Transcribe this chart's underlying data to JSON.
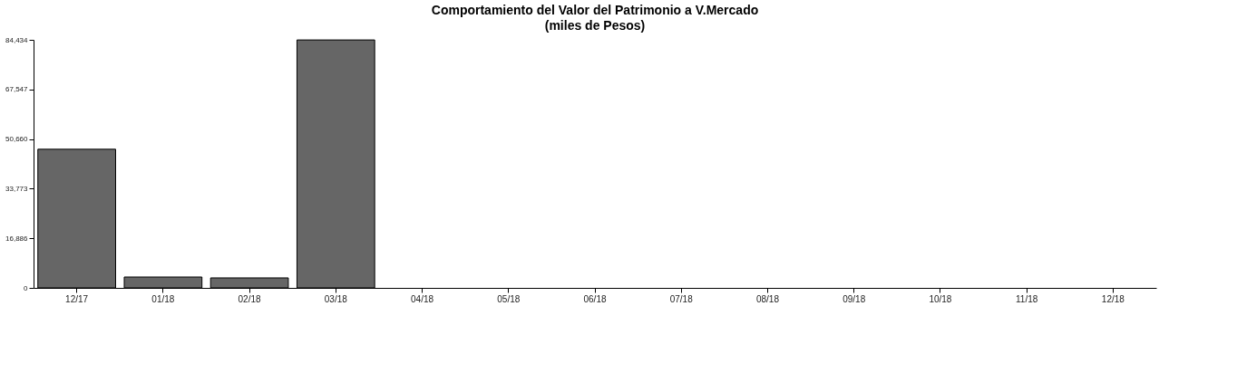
{
  "chart_data": {
    "type": "bar",
    "title": "Comportamiento del Valor del Patrimonio a V.Mercado",
    "subtitle": "(miles de Pesos)",
    "categories": [
      "12/17",
      "01/18",
      "02/18",
      "03/18",
      "04/18",
      "05/18",
      "06/18",
      "07/18",
      "08/18",
      "09/18",
      "10/18",
      "11/18",
      "12/18"
    ],
    "values": [
      47200,
      3700,
      3400,
      84400,
      null,
      null,
      null,
      null,
      null,
      null,
      null,
      null,
      null
    ],
    "color": "#666666",
    "ylim": [
      0,
      84434
    ],
    "yticks": [
      {
        "value": 0,
        "label": "0"
      },
      {
        "value": 16886,
        "label": "16,886"
      },
      {
        "value": 33773,
        "label": "33,773"
      },
      {
        "value": 50660,
        "label": "50,660"
      },
      {
        "value": 67547,
        "label": "67,547"
      },
      {
        "value": 84434,
        "label": "84,434"
      }
    ],
    "grid": false
  }
}
